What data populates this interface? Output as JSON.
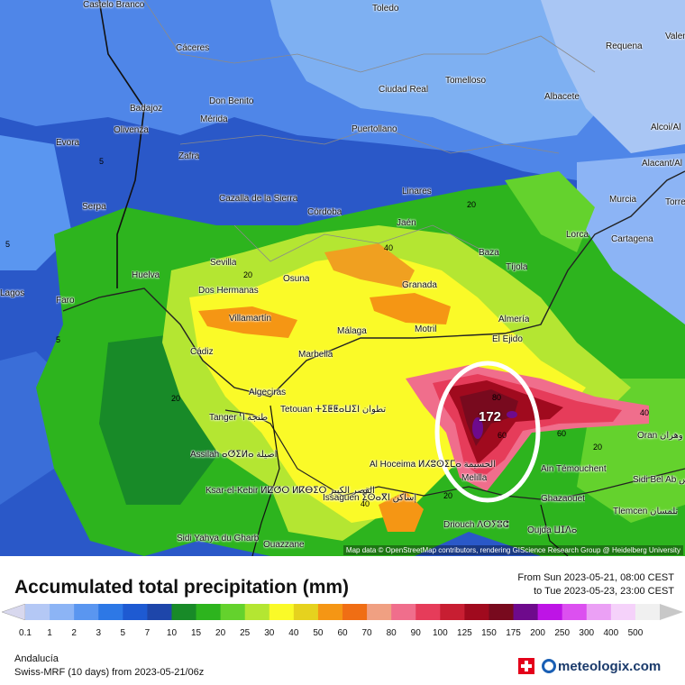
{
  "title": "Accumulated total precipitation (mm)",
  "period": {
    "from": "From Sun 2023-05-21, 08:00 CEST",
    "to": "to Tue 2023-05-23, 23:00 CEST"
  },
  "region": "Andalucía",
  "model": "Swiss-MRF (10 days)  from  2023-05-21/06z",
  "brand": "meteologix.com",
  "attribution": "Map data © OpenStreetMap contributors, rendering GIScience Research Group @ Heidelberg University",
  "max_value_label": "172",
  "legend": {
    "ticks": [
      "0.1",
      "1",
      "2",
      "3",
      "5",
      "7",
      "10",
      "15",
      "20",
      "25",
      "30",
      "40",
      "50",
      "60",
      "70",
      "80",
      "90",
      "100",
      "125",
      "150",
      "175",
      "200",
      "250",
      "300",
      "400",
      "500"
    ],
    "colors": [
      "#d8d8ee",
      "#b4c8f5",
      "#8cb4f5",
      "#5a96f0",
      "#2d78e6",
      "#1e5ad2",
      "#1e46aa",
      "#188a28",
      "#2db41e",
      "#64d22d",
      "#b4e632",
      "#fafa28",
      "#e6d21e",
      "#f59614",
      "#f06e14",
      "#f0a082",
      "#f06e8c",
      "#e63c5a",
      "#c81e32",
      "#a00a1e",
      "#780a1e",
      "#6e0a8c",
      "#be14e6",
      "#dc50f0",
      "#eba0f5",
      "#f5d2fa",
      "#f0f0f0",
      "#c8c8c8"
    ]
  },
  "cities": [
    {
      "name": "Castelo Branco"
    },
    {
      "name": "Toledo"
    },
    {
      "name": "Cáceres"
    },
    {
      "name": "Requena"
    },
    {
      "name": "Ciudad Real"
    },
    {
      "name": "Tomelloso"
    },
    {
      "name": "Badajoz"
    },
    {
      "name": "Don Benito"
    },
    {
      "name": "Mérida"
    },
    {
      "name": "Albacete"
    },
    {
      "name": "Évora"
    },
    {
      "name": "Olivenza"
    },
    {
      "name": "Puertollano"
    },
    {
      "name": "Zafra"
    },
    {
      "name": "Alcoi/Al"
    },
    {
      "name": "Alacant/Al"
    },
    {
      "name": "Serpa"
    },
    {
      "name": "Cazalla de la Sierra"
    },
    {
      "name": "Linares"
    },
    {
      "name": "Córdoba"
    },
    {
      "name": "Murcia"
    },
    {
      "name": "Jaén"
    },
    {
      "name": "Lorca"
    },
    {
      "name": "Cartagena"
    },
    {
      "name": "Huelva"
    },
    {
      "name": "Sevilla"
    },
    {
      "name": "Baza"
    },
    {
      "name": "Tíjola"
    },
    {
      "name": "Faro"
    },
    {
      "name": "Osuna"
    },
    {
      "name": "Dos Hermanas"
    },
    {
      "name": "Granada"
    },
    {
      "name": "Almería"
    },
    {
      "name": "Villamartín"
    },
    {
      "name": "Málaga"
    },
    {
      "name": "Motril"
    },
    {
      "name": "El Ejido"
    },
    {
      "name": "Cádiz"
    },
    {
      "name": "Marbella"
    },
    {
      "name": "Algeciras"
    },
    {
      "name": "Tanger Ⴄ طنجة"
    },
    {
      "name": "Tetouan ⵜⵉⵟⵟⴰⵡⵉⵏ تطوان"
    },
    {
      "name": "Oran وهران"
    },
    {
      "name": "Assilah ⴰⵚⵉⵍⴰ أصيلة"
    },
    {
      "name": "Al Hoceima ⵍⵃⵓⵙⵉⵎⴰ الحسيمة"
    },
    {
      "name": "Melilla"
    },
    {
      "name": "Ain Témouchent"
    },
    {
      "name": "Ksar-el-Kebir ⵍⵇⵚⵔ ⵍⴽⴱⵉⵔ القصر الكبير"
    },
    {
      "name": "Issaguen ⵉⵙⴰⴳⵏ إساكن"
    },
    {
      "name": "Ghazaouet"
    },
    {
      "name": "Sidi Bel Ab سيدي بلعباس"
    },
    {
      "name": "Tlemcen تلمسان"
    },
    {
      "name": "Driouch ⴷⵔⵢⵓⵛ"
    },
    {
      "name": "Oujda ⵡⵊⴷⴰ"
    },
    {
      "name": "Sidi Yahya du Gharb"
    },
    {
      "name": "Ouazzane"
    },
    {
      "name": "Lagos"
    },
    {
      "name": "Valencia"
    },
    {
      "name": "Torrevieja"
    }
  ],
  "isolines": [
    "5",
    "5",
    "5",
    "20",
    "20",
    "20",
    "20",
    "40",
    "40",
    "60",
    "60",
    "80",
    "20",
    "40"
  ]
}
